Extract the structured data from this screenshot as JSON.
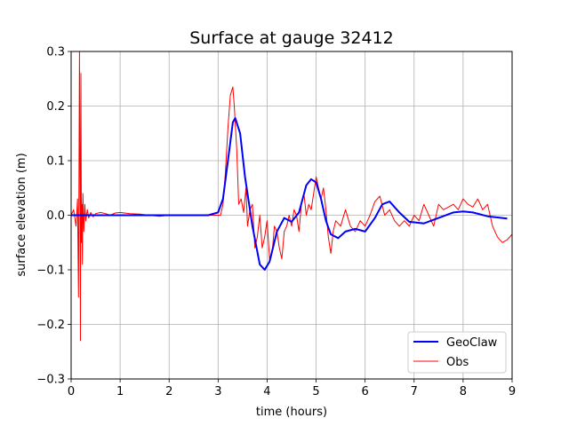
{
  "chart_data": {
    "type": "line",
    "title": "Surface at gauge 32412",
    "xlabel": "time (hours)",
    "ylabel": "surface elevation (m)",
    "xlim": [
      0,
      9
    ],
    "ylim": [
      -0.3,
      0.3
    ],
    "xticks": [
      0,
      1,
      2,
      3,
      4,
      5,
      6,
      7,
      8,
      9
    ],
    "yticks": [
      -0.3,
      -0.2,
      -0.1,
      0.0,
      0.1,
      0.2,
      0.3
    ],
    "ytick_labels": [
      "−0.3",
      "−0.2",
      "−0.1",
      "0.0",
      "0.1",
      "0.2",
      "0.3"
    ],
    "xtick_labels": [
      "0",
      "1",
      "2",
      "3",
      "4",
      "5",
      "6",
      "7",
      "8",
      "9"
    ],
    "grid": true,
    "legend_position": "bottom-right",
    "series": [
      {
        "name": "GeoClaw",
        "color": "#0000ff",
        "x": [
          0.0,
          0.5,
          1.0,
          1.5,
          2.0,
          2.5,
          2.8,
          3.0,
          3.1,
          3.2,
          3.3,
          3.35,
          3.45,
          3.55,
          3.7,
          3.85,
          3.95,
          4.05,
          4.2,
          4.35,
          4.5,
          4.65,
          4.8,
          4.9,
          5.0,
          5.1,
          5.2,
          5.3,
          5.45,
          5.6,
          5.8,
          6.0,
          6.2,
          6.35,
          6.5,
          6.7,
          6.9,
          7.2,
          7.5,
          7.8,
          8.0,
          8.2,
          8.5,
          8.9
        ],
        "y": [
          0.0,
          0.0,
          0.0,
          0.0,
          0.0,
          0.0,
          0.0,
          0.005,
          0.03,
          0.1,
          0.17,
          0.178,
          0.15,
          0.07,
          -0.02,
          -0.09,
          -0.1,
          -0.085,
          -0.03,
          -0.005,
          -0.012,
          0.005,
          0.055,
          0.066,
          0.06,
          0.03,
          -0.01,
          -0.035,
          -0.042,
          -0.03,
          -0.025,
          -0.03,
          -0.005,
          0.02,
          0.025,
          0.005,
          -0.012,
          -0.015,
          -0.005,
          0.005,
          0.007,
          0.005,
          -0.002,
          -0.006
        ]
      },
      {
        "name": "Obs",
        "color": "#ff0000",
        "x": [
          0.0,
          0.05,
          0.1,
          0.13,
          0.15,
          0.17,
          0.18,
          0.19,
          0.2,
          0.21,
          0.22,
          0.23,
          0.24,
          0.26,
          0.28,
          0.3,
          0.33,
          0.36,
          0.4,
          0.45,
          0.5,
          0.6,
          0.7,
          0.8,
          0.9,
          1.0,
          1.2,
          1.4,
          1.6,
          1.8,
          2.0,
          2.3,
          2.6,
          2.9,
          3.05,
          3.1,
          3.15,
          3.2,
          3.25,
          3.3,
          3.33,
          3.38,
          3.42,
          3.47,
          3.52,
          3.57,
          3.6,
          3.65,
          3.7,
          3.75,
          3.8,
          3.85,
          3.9,
          3.95,
          4.0,
          4.05,
          4.1,
          4.15,
          4.2,
          4.25,
          4.3,
          4.35,
          4.4,
          4.45,
          4.5,
          4.55,
          4.6,
          4.65,
          4.7,
          4.75,
          4.8,
          4.85,
          4.9,
          4.95,
          5.0,
          5.05,
          5.1,
          5.15,
          5.2,
          5.25,
          5.3,
          5.35,
          5.4,
          5.5,
          5.6,
          5.7,
          5.8,
          5.9,
          6.0,
          6.1,
          6.2,
          6.3,
          6.4,
          6.5,
          6.6,
          6.7,
          6.8,
          6.9,
          7.0,
          7.1,
          7.2,
          7.3,
          7.4,
          7.5,
          7.6,
          7.7,
          7.8,
          7.9,
          8.0,
          8.1,
          8.2,
          8.3,
          8.4,
          8.5,
          8.6,
          8.7,
          8.8,
          8.9,
          9.0
        ],
        "y": [
          0.0,
          0.01,
          -0.02,
          0.03,
          -0.15,
          0.3,
          0.1,
          -0.23,
          0.26,
          -0.05,
          0.02,
          -0.09,
          0.04,
          -0.03,
          0.02,
          -0.01,
          0.01,
          -0.005,
          0.005,
          -0.003,
          0.003,
          0.005,
          0.003,
          0.0,
          0.004,
          0.005,
          0.003,
          0.002,
          0.0,
          -0.002,
          0.0,
          0.0,
          0.0,
          0.0,
          0.0,
          0.02,
          0.08,
          0.16,
          0.22,
          0.235,
          0.2,
          0.12,
          0.02,
          0.03,
          0.005,
          0.05,
          -0.02,
          0.01,
          0.02,
          -0.06,
          -0.04,
          0.0,
          -0.06,
          -0.04,
          -0.01,
          -0.08,
          -0.07,
          -0.02,
          -0.03,
          -0.06,
          -0.08,
          -0.03,
          -0.02,
          0.0,
          -0.02,
          0.01,
          0.0,
          -0.03,
          0.02,
          0.04,
          0.0,
          0.02,
          0.01,
          0.04,
          0.07,
          0.05,
          0.03,
          0.05,
          0.01,
          -0.04,
          -0.07,
          -0.03,
          -0.01,
          -0.02,
          0.01,
          -0.02,
          -0.03,
          -0.01,
          -0.02,
          0.0,
          0.025,
          0.035,
          0.0,
          0.01,
          -0.01,
          -0.02,
          -0.01,
          -0.02,
          0.0,
          -0.01,
          0.02,
          0.0,
          -0.02,
          0.02,
          0.01,
          0.015,
          0.02,
          0.01,
          0.03,
          0.02,
          0.015,
          0.03,
          0.01,
          0.02,
          -0.02,
          -0.04,
          -0.05,
          -0.045,
          -0.035
        ]
      }
    ]
  }
}
